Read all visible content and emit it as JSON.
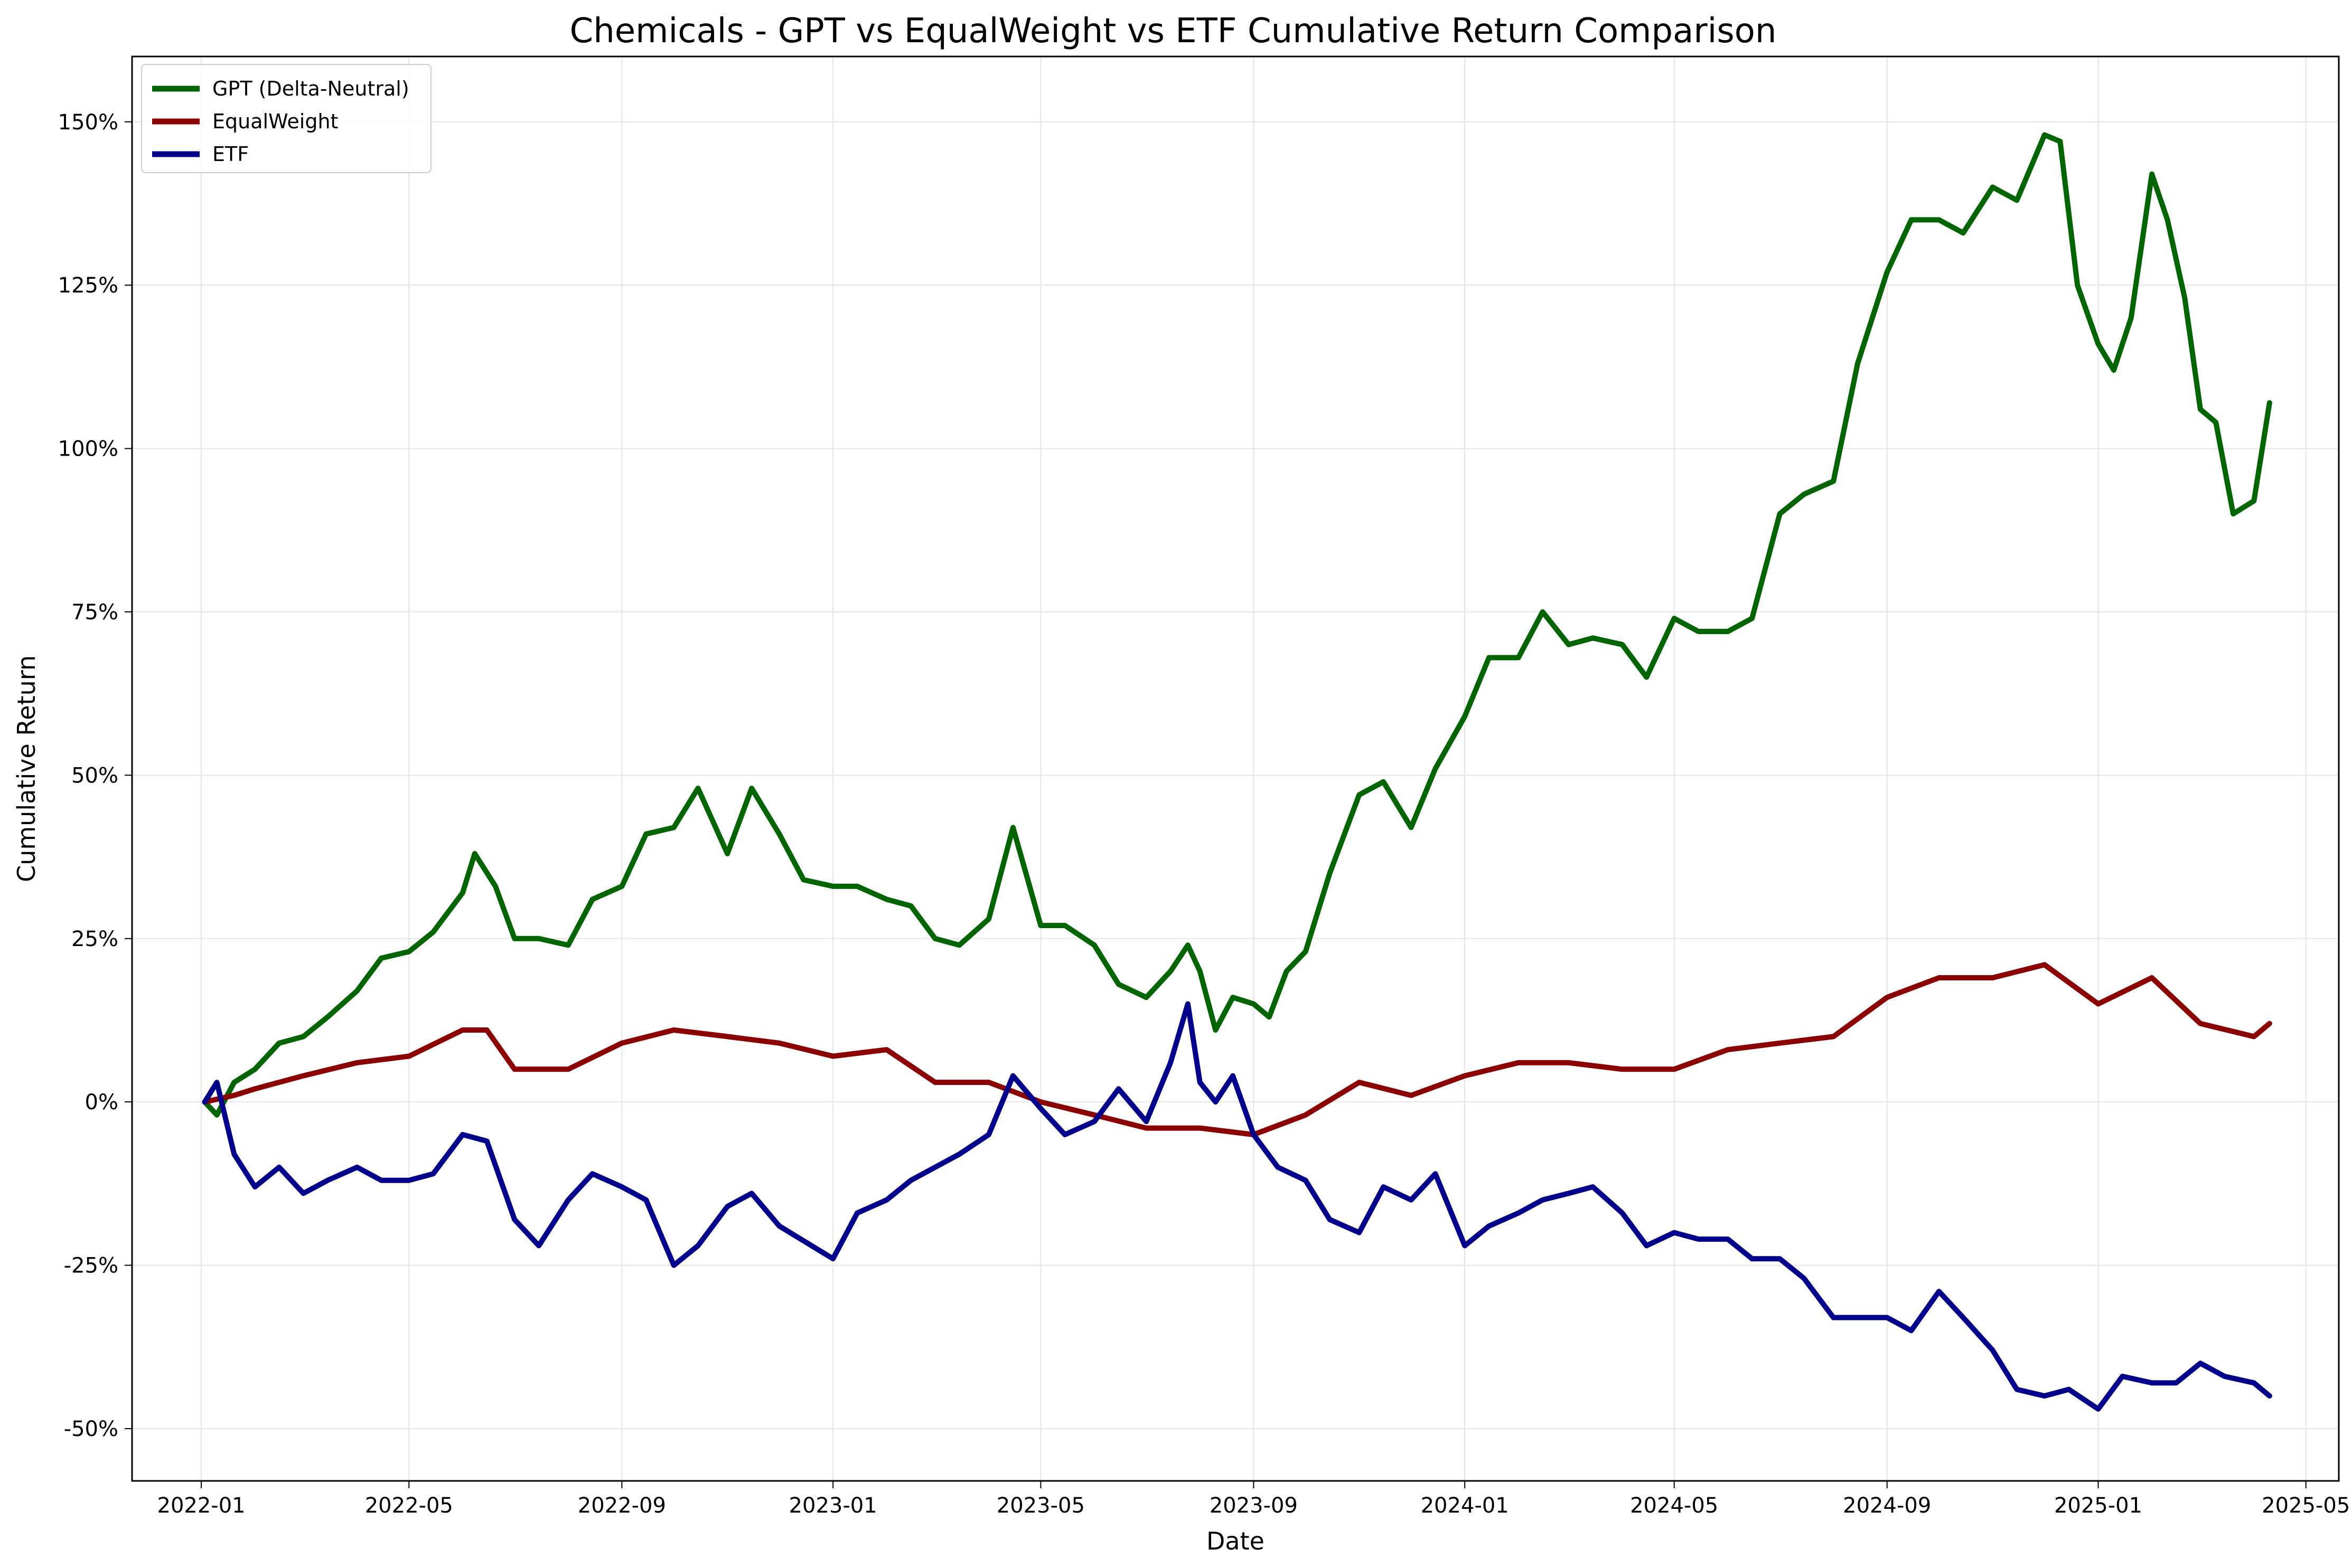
{
  "chart_data": {
    "type": "line",
    "title": "Chemicals - GPT vs EqualWeight vs ETF Cumulative Return Comparison",
    "xlabel": "Date",
    "ylabel": "Cumulative Return",
    "xlim": [
      "2021-11-22",
      "2025-05-20"
    ],
    "ylim": [
      -0.58,
      1.6
    ],
    "grid": true,
    "legend_position": "upper-left",
    "x_ticks": [
      "2022-01",
      "2022-05",
      "2022-09",
      "2023-01",
      "2023-05",
      "2023-09",
      "2024-01",
      "2024-05",
      "2024-09",
      "2025-01",
      "2025-05"
    ],
    "y_ticks": [
      {
        "value": -0.5,
        "label": "-50%"
      },
      {
        "value": -0.25,
        "label": "-25%"
      },
      {
        "value": 0,
        "label": "0%"
      },
      {
        "value": 0.25,
        "label": "25%"
      },
      {
        "value": 0.5,
        "label": "50%"
      },
      {
        "value": 0.75,
        "label": "75%"
      },
      {
        "value": 1.0,
        "label": "100%"
      },
      {
        "value": 1.25,
        "label": "125%"
      },
      {
        "value": 1.5,
        "label": "150%"
      }
    ],
    "series": [
      {
        "name": "GPT (Delta-Neutral)",
        "color": "#006400",
        "points": [
          [
            "2022-01-03",
            0.0
          ],
          [
            "2022-01-10",
            -0.02
          ],
          [
            "2022-01-20",
            0.03
          ],
          [
            "2022-02-01",
            0.05
          ],
          [
            "2022-02-15",
            0.09
          ],
          [
            "2022-03-01",
            0.1
          ],
          [
            "2022-03-15",
            0.13
          ],
          [
            "2022-04-01",
            0.17
          ],
          [
            "2022-04-15",
            0.22
          ],
          [
            "2022-05-01",
            0.23
          ],
          [
            "2022-05-15",
            0.26
          ],
          [
            "2022-06-01",
            0.32
          ],
          [
            "2022-06-08",
            0.38
          ],
          [
            "2022-06-20",
            0.33
          ],
          [
            "2022-07-01",
            0.25
          ],
          [
            "2022-07-15",
            0.25
          ],
          [
            "2022-08-01",
            0.24
          ],
          [
            "2022-08-15",
            0.31
          ],
          [
            "2022-09-01",
            0.33
          ],
          [
            "2022-09-15",
            0.41
          ],
          [
            "2022-10-01",
            0.42
          ],
          [
            "2022-10-15",
            0.48
          ],
          [
            "2022-11-01",
            0.38
          ],
          [
            "2022-11-15",
            0.48
          ],
          [
            "2022-12-01",
            0.41
          ],
          [
            "2022-12-15",
            0.34
          ],
          [
            "2023-01-01",
            0.33
          ],
          [
            "2023-01-15",
            0.33
          ],
          [
            "2023-02-01",
            0.31
          ],
          [
            "2023-02-15",
            0.3
          ],
          [
            "2023-03-01",
            0.25
          ],
          [
            "2023-03-15",
            0.24
          ],
          [
            "2023-04-01",
            0.28
          ],
          [
            "2023-04-15",
            0.42
          ],
          [
            "2023-05-01",
            0.27
          ],
          [
            "2023-05-15",
            0.27
          ],
          [
            "2023-06-01",
            0.24
          ],
          [
            "2023-06-15",
            0.18
          ],
          [
            "2023-07-01",
            0.16
          ],
          [
            "2023-07-15",
            0.2
          ],
          [
            "2023-07-25",
            0.24
          ],
          [
            "2023-08-01",
            0.2
          ],
          [
            "2023-08-10",
            0.11
          ],
          [
            "2023-08-20",
            0.16
          ],
          [
            "2023-09-01",
            0.15
          ],
          [
            "2023-09-10",
            0.13
          ],
          [
            "2023-09-20",
            0.2
          ],
          [
            "2023-10-01",
            0.23
          ],
          [
            "2023-10-15",
            0.35
          ],
          [
            "2023-11-01",
            0.47
          ],
          [
            "2023-11-15",
            0.49
          ],
          [
            "2023-12-01",
            0.42
          ],
          [
            "2023-12-15",
            0.51
          ],
          [
            "2024-01-01",
            0.59
          ],
          [
            "2024-01-15",
            0.68
          ],
          [
            "2024-02-01",
            0.68
          ],
          [
            "2024-02-15",
            0.75
          ],
          [
            "2024-03-01",
            0.7
          ],
          [
            "2024-03-15",
            0.71
          ],
          [
            "2024-04-01",
            0.7
          ],
          [
            "2024-04-15",
            0.65
          ],
          [
            "2024-05-01",
            0.74
          ],
          [
            "2024-05-15",
            0.72
          ],
          [
            "2024-06-01",
            0.72
          ],
          [
            "2024-06-15",
            0.74
          ],
          [
            "2024-07-01",
            0.9
          ],
          [
            "2024-07-15",
            0.93
          ],
          [
            "2024-08-01",
            0.95
          ],
          [
            "2024-08-15",
            1.13
          ],
          [
            "2024-09-01",
            1.27
          ],
          [
            "2024-09-15",
            1.35
          ],
          [
            "2024-10-01",
            1.35
          ],
          [
            "2024-10-15",
            1.33
          ],
          [
            "2024-11-01",
            1.4
          ],
          [
            "2024-11-15",
            1.38
          ],
          [
            "2024-12-01",
            1.48
          ],
          [
            "2024-12-10",
            1.47
          ],
          [
            "2024-12-20",
            1.25
          ],
          [
            "2025-01-01",
            1.16
          ],
          [
            "2025-01-10",
            1.12
          ],
          [
            "2025-01-20",
            1.2
          ],
          [
            "2025-02-01",
            1.42
          ],
          [
            "2025-02-10",
            1.35
          ],
          [
            "2025-02-20",
            1.23
          ],
          [
            "2025-03-01",
            1.06
          ],
          [
            "2025-03-10",
            1.04
          ],
          [
            "2025-03-20",
            0.9
          ],
          [
            "2025-04-01",
            0.92
          ],
          [
            "2025-04-10",
            1.07
          ]
        ]
      },
      {
        "name": "EqualWeight",
        "color": "#8B0000",
        "points": [
          [
            "2022-01-03",
            0.0
          ],
          [
            "2022-01-20",
            0.01
          ],
          [
            "2022-02-01",
            0.02
          ],
          [
            "2022-03-01",
            0.04
          ],
          [
            "2022-04-01",
            0.06
          ],
          [
            "2022-05-01",
            0.07
          ],
          [
            "2022-06-01",
            0.11
          ],
          [
            "2022-06-15",
            0.11
          ],
          [
            "2022-07-01",
            0.05
          ],
          [
            "2022-08-01",
            0.05
          ],
          [
            "2022-09-01",
            0.09
          ],
          [
            "2022-10-01",
            0.11
          ],
          [
            "2022-11-01",
            0.1
          ],
          [
            "2022-12-01",
            0.09
          ],
          [
            "2023-01-01",
            0.07
          ],
          [
            "2023-02-01",
            0.08
          ],
          [
            "2023-03-01",
            0.03
          ],
          [
            "2023-04-01",
            0.03
          ],
          [
            "2023-05-01",
            0.0
          ],
          [
            "2023-06-01",
            -0.02
          ],
          [
            "2023-07-01",
            -0.04
          ],
          [
            "2023-08-01",
            -0.04
          ],
          [
            "2023-09-01",
            -0.05
          ],
          [
            "2023-10-01",
            -0.02
          ],
          [
            "2023-11-01",
            0.03
          ],
          [
            "2023-12-01",
            0.01
          ],
          [
            "2024-01-01",
            0.04
          ],
          [
            "2024-02-01",
            0.06
          ],
          [
            "2024-03-01",
            0.06
          ],
          [
            "2024-04-01",
            0.05
          ],
          [
            "2024-05-01",
            0.05
          ],
          [
            "2024-06-01",
            0.08
          ],
          [
            "2024-07-01",
            0.09
          ],
          [
            "2024-08-01",
            0.1
          ],
          [
            "2024-09-01",
            0.16
          ],
          [
            "2024-10-01",
            0.19
          ],
          [
            "2024-11-01",
            0.19
          ],
          [
            "2024-12-01",
            0.21
          ],
          [
            "2025-01-01",
            0.15
          ],
          [
            "2025-02-01",
            0.19
          ],
          [
            "2025-03-01",
            0.12
          ],
          [
            "2025-04-01",
            0.1
          ],
          [
            "2025-04-10",
            0.12
          ]
        ]
      },
      {
        "name": "ETF",
        "color": "#00008B",
        "points": [
          [
            "2022-01-03",
            0.0
          ],
          [
            "2022-01-10",
            0.03
          ],
          [
            "2022-01-20",
            -0.08
          ],
          [
            "2022-02-01",
            -0.13
          ],
          [
            "2022-02-15",
            -0.1
          ],
          [
            "2022-03-01",
            -0.14
          ],
          [
            "2022-03-15",
            -0.12
          ],
          [
            "2022-04-01",
            -0.1
          ],
          [
            "2022-04-15",
            -0.12
          ],
          [
            "2022-05-01",
            -0.12
          ],
          [
            "2022-05-15",
            -0.11
          ],
          [
            "2022-06-01",
            -0.05
          ],
          [
            "2022-06-15",
            -0.06
          ],
          [
            "2022-07-01",
            -0.18
          ],
          [
            "2022-07-15",
            -0.22
          ],
          [
            "2022-08-01",
            -0.15
          ],
          [
            "2022-08-15",
            -0.11
          ],
          [
            "2022-09-01",
            -0.13
          ],
          [
            "2022-09-15",
            -0.15
          ],
          [
            "2022-10-01",
            -0.25
          ],
          [
            "2022-10-15",
            -0.22
          ],
          [
            "2022-11-01",
            -0.16
          ],
          [
            "2022-11-15",
            -0.14
          ],
          [
            "2022-12-01",
            -0.19
          ],
          [
            "2023-01-01",
            -0.24
          ],
          [
            "2023-01-15",
            -0.17
          ],
          [
            "2023-02-01",
            -0.15
          ],
          [
            "2023-02-15",
            -0.12
          ],
          [
            "2023-03-01",
            -0.1
          ],
          [
            "2023-03-15",
            -0.08
          ],
          [
            "2023-04-01",
            -0.05
          ],
          [
            "2023-04-15",
            0.04
          ],
          [
            "2023-05-01",
            -0.01
          ],
          [
            "2023-05-15",
            -0.05
          ],
          [
            "2023-06-01",
            -0.03
          ],
          [
            "2023-06-15",
            0.02
          ],
          [
            "2023-07-01",
            -0.03
          ],
          [
            "2023-07-15",
            0.06
          ],
          [
            "2023-07-25",
            0.15
          ],
          [
            "2023-08-01",
            0.03
          ],
          [
            "2023-08-10",
            0.0
          ],
          [
            "2023-08-20",
            0.04
          ],
          [
            "2023-09-01",
            -0.05
          ],
          [
            "2023-09-15",
            -0.1
          ],
          [
            "2023-10-01",
            -0.12
          ],
          [
            "2023-10-15",
            -0.18
          ],
          [
            "2023-11-01",
            -0.2
          ],
          [
            "2023-11-15",
            -0.13
          ],
          [
            "2023-12-01",
            -0.15
          ],
          [
            "2023-12-15",
            -0.11
          ],
          [
            "2024-01-01",
            -0.22
          ],
          [
            "2024-01-15",
            -0.19
          ],
          [
            "2024-02-01",
            -0.17
          ],
          [
            "2024-02-15",
            -0.15
          ],
          [
            "2024-03-01",
            -0.14
          ],
          [
            "2024-03-15",
            -0.13
          ],
          [
            "2024-04-01",
            -0.17
          ],
          [
            "2024-04-15",
            -0.22
          ],
          [
            "2024-05-01",
            -0.2
          ],
          [
            "2024-05-15",
            -0.21
          ],
          [
            "2024-06-01",
            -0.21
          ],
          [
            "2024-06-15",
            -0.24
          ],
          [
            "2024-07-01",
            -0.24
          ],
          [
            "2024-07-15",
            -0.27
          ],
          [
            "2024-08-01",
            -0.33
          ],
          [
            "2024-08-15",
            -0.33
          ],
          [
            "2024-09-01",
            -0.33
          ],
          [
            "2024-09-15",
            -0.35
          ],
          [
            "2024-10-01",
            -0.29
          ],
          [
            "2024-10-15",
            -0.33
          ],
          [
            "2024-11-01",
            -0.38
          ],
          [
            "2024-11-15",
            -0.44
          ],
          [
            "2024-12-01",
            -0.45
          ],
          [
            "2024-12-15",
            -0.44
          ],
          [
            "2025-01-01",
            -0.47
          ],
          [
            "2025-01-15",
            -0.42
          ],
          [
            "2025-02-01",
            -0.43
          ],
          [
            "2025-02-15",
            -0.43
          ],
          [
            "2025-03-01",
            -0.4
          ],
          [
            "2025-03-15",
            -0.42
          ],
          [
            "2025-04-01",
            -0.43
          ],
          [
            "2025-04-10",
            -0.45
          ]
        ]
      }
    ]
  }
}
